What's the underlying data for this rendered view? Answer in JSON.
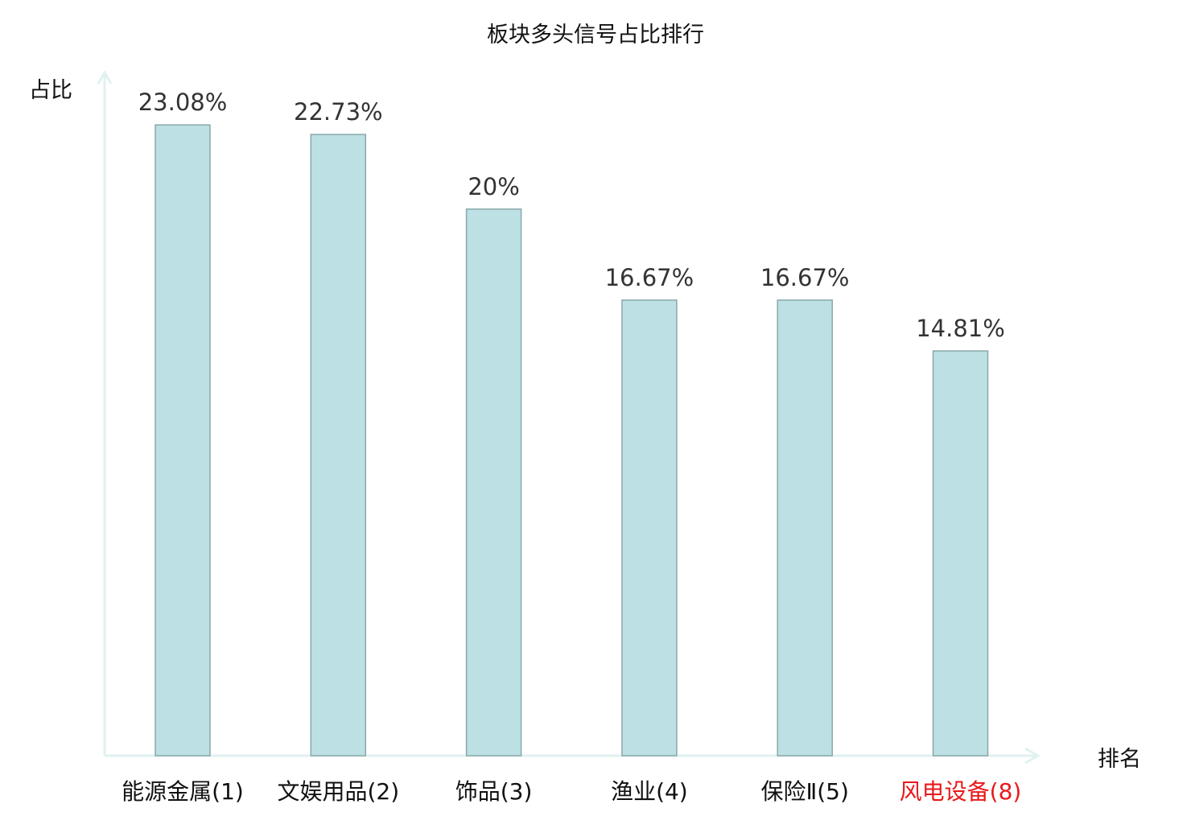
{
  "chart_data": {
    "type": "bar",
    "title": "板块多头信号占比排行",
    "xlabel": "排名",
    "ylabel": "占比",
    "categories": [
      "能源金属(1)",
      "文娱用品(2)",
      "饰品(3)",
      "渔业(4)",
      "保险Ⅱ(5)",
      "风电设备(8)"
    ],
    "values": [
      23.08,
      22.73,
      20,
      16.67,
      16.67,
      14.81
    ],
    "value_labels": [
      "23.08%",
      "22.73%",
      "20%",
      "16.67%",
      "16.67%",
      "14.81%"
    ],
    "category_colors": [
      "#111111",
      "#111111",
      "#111111",
      "#111111",
      "#111111",
      "#e8191b"
    ],
    "ylim": [
      0,
      25
    ],
    "grid": false,
    "bar_fill": "#bce0e3",
    "bar_stroke": "#8aa8aa",
    "axis_color": "#dff2f0"
  }
}
